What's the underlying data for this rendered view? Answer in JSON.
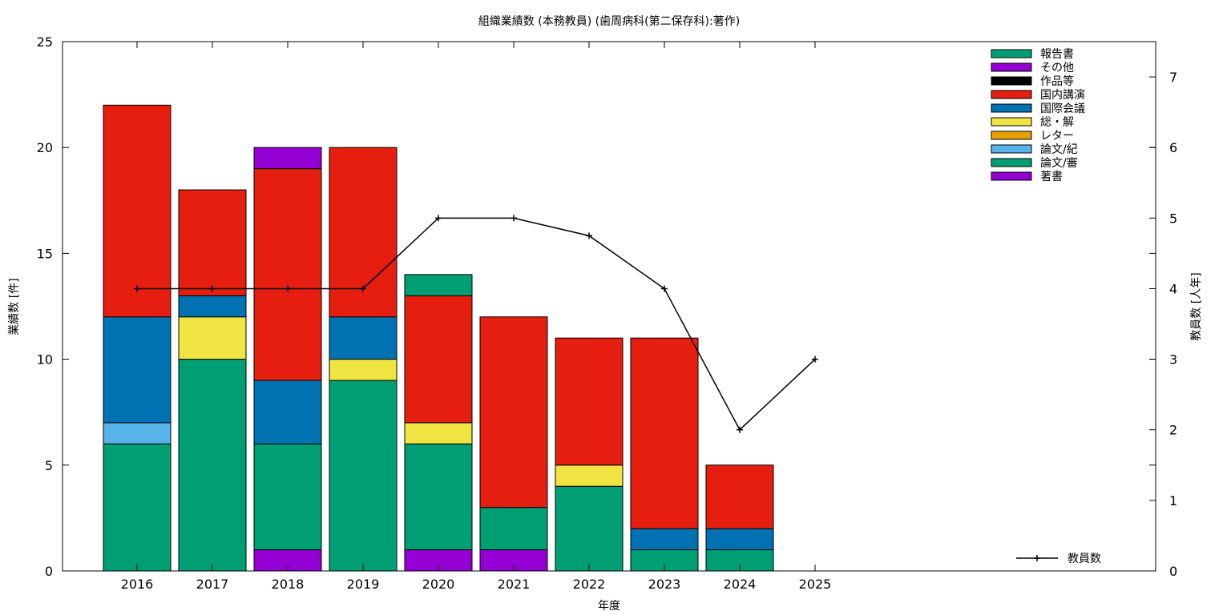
{
  "chart_data": {
    "type": "bar",
    "title": "組織業績数 (本務教員) (歯周病科(第二保存科):著作)",
    "xlabel": "年度",
    "ylabel": "業績数 [件]",
    "y2label": "教員数 [人年]",
    "ylim": [
      0,
      25
    ],
    "y2lim": [
      0,
      7.5
    ],
    "yticks": [
      0,
      5,
      10,
      15,
      20,
      25
    ],
    "y2ticks": [
      0,
      1,
      2,
      3,
      4,
      5,
      6,
      7
    ],
    "categories": [
      "2016",
      "2017",
      "2018",
      "2019",
      "2020",
      "2021",
      "2022",
      "2023",
      "2024",
      "2025"
    ],
    "stacked": true,
    "grid": false,
    "legend_position": "top-right",
    "series": [
      {
        "name": "著書",
        "color": "#9400d3",
        "values": [
          0,
          0,
          1,
          0,
          1,
          1,
          0,
          0,
          0,
          0
        ]
      },
      {
        "name": "論文/審",
        "color": "#009e73",
        "values": [
          6,
          10,
          5,
          9,
          5,
          2,
          4,
          1,
          1,
          0
        ]
      },
      {
        "name": "論文/紀",
        "color": "#56b4e9",
        "values": [
          1,
          0,
          0,
          0,
          0,
          0,
          0,
          0,
          0,
          0
        ]
      },
      {
        "name": "レター",
        "color": "#e69f00",
        "values": [
          0,
          0,
          0,
          0,
          0,
          0,
          0,
          0,
          0,
          0
        ]
      },
      {
        "name": "総・解",
        "color": "#f0e442",
        "values": [
          0,
          2,
          0,
          1,
          1,
          0,
          1,
          0,
          0,
          0
        ]
      },
      {
        "name": "国際会議",
        "color": "#0072b2",
        "values": [
          5,
          1,
          3,
          2,
          0,
          0,
          0,
          1,
          1,
          0
        ]
      },
      {
        "name": "国内講演",
        "color": "#e51e10",
        "values": [
          10,
          5,
          10,
          8,
          6,
          9,
          6,
          9,
          3,
          0
        ]
      },
      {
        "name": "作品等",
        "color": "#000000",
        "values": [
          0,
          0,
          0,
          0,
          0,
          0,
          0,
          0,
          0,
          0
        ]
      },
      {
        "name": "その他",
        "color": "#9400d3",
        "values": [
          0,
          0,
          1,
          0,
          0,
          0,
          0,
          0,
          0,
          0
        ]
      },
      {
        "name": "報告書",
        "color": "#009e73",
        "values": [
          0,
          0,
          0,
          0,
          1,
          0,
          0,
          0,
          0,
          0
        ]
      }
    ],
    "legend_order": [
      "報告書",
      "その他",
      "作品等",
      "国内講演",
      "国際会議",
      "総・解",
      "レター",
      "論文/紀",
      "論文/審",
      "著書"
    ],
    "line": {
      "name": "教員数",
      "color": "#000000",
      "axis": "right",
      "values": [
        4,
        4,
        4,
        4,
        5,
        5,
        4.75,
        4,
        2,
        3
      ]
    }
  }
}
